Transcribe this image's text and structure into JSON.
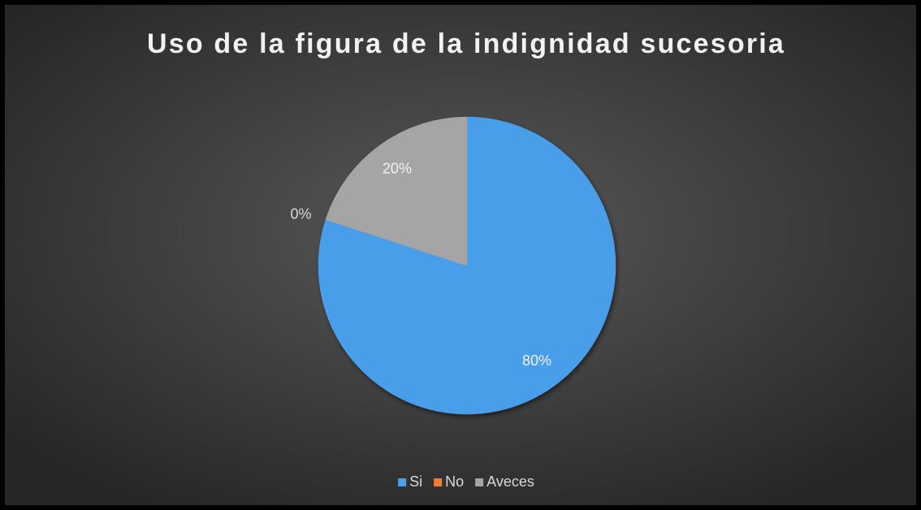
{
  "chart_data": {
    "type": "pie",
    "title": "Uso de la figura de la indignidad sucesoria",
    "categories": [
      "Si",
      "No",
      "Aveces"
    ],
    "values": [
      80,
      0,
      20
    ],
    "value_labels": [
      "80%",
      "0%",
      "20%"
    ],
    "colors": [
      "#4a9eea",
      "#ed7d31",
      "#a5a5a5"
    ],
    "legend": "bottom"
  }
}
